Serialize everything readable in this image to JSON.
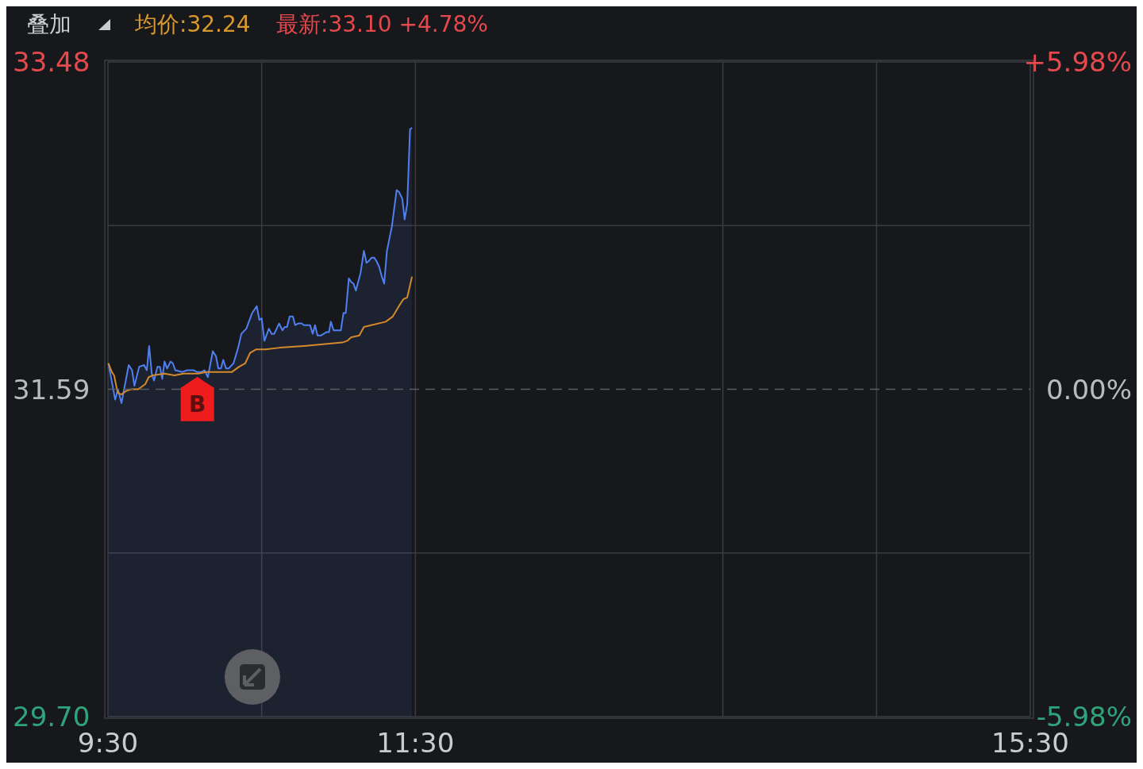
{
  "chart_data": {
    "type": "area",
    "annotations": [
      "叠加",
      "均价:32.24",
      "最新:33.10 +4.78%",
      {
        "text": "B",
        "x": 10.082,
        "y": 31.68
      }
    ],
    "xlim": [
      9.5,
      15.5
    ],
    "xticks": [
      {
        "value": 9.5,
        "label": "9:30"
      },
      {
        "value": 10.5,
        "label": null
      },
      {
        "value": 11.5,
        "label": "11:30"
      },
      {
        "value": 13.5,
        "label": null
      },
      {
        "value": 14.5,
        "label": null
      },
      {
        "value": 15.5,
        "label": "15:30"
      }
    ],
    "ylim": [
      29.7,
      33.48
    ],
    "yticks": [
      {
        "value": 29.7,
        "label": "29.70"
      },
      {
        "value": 30.645,
        "label": null
      },
      31.59,
      {
        "value": 32.535,
        "label": null
      },
      33.48
    ],
    "y2lim": [
      -5.98,
      5.98
    ],
    "y2ticks": [
      {
        "value": -5.98,
        "label": "-5.98%"
      },
      {
        "value": 0,
        "label": "0.00%"
      },
      {
        "value": 5.98,
        "label": "+5.98%"
      }
    ],
    "grid": true,
    "ref_lines": [
      {
        "axis": "y",
        "value": 31.59,
        "line_style": "dashed",
        "color": "#5a5c63"
      }
    ],
    "series": [
      {
        "type": "area",
        "color": "#4f7ff0",
        "x": [
          9.503,
          9.547,
          9.565,
          9.588,
          9.635,
          9.657,
          9.672,
          9.703,
          9.735,
          9.753,
          9.768,
          9.785,
          9.8,
          9.822,
          9.838,
          9.853,
          9.868,
          9.885,
          9.907,
          9.922,
          9.938,
          9.985,
          10.015,
          10.057,
          10.078,
          10.11,
          10.128,
          10.15,
          10.182,
          10.203,
          10.218,
          10.235,
          10.25,
          10.268,
          10.285,
          10.317,
          10.347,
          10.368,
          10.4,
          10.438,
          10.468,
          10.485,
          10.5,
          10.518,
          10.547,
          10.565,
          10.582,
          10.613,
          10.635,
          10.65,
          10.665,
          10.682,
          10.703,
          10.718,
          10.738,
          10.76,
          10.775,
          10.815,
          10.832,
          10.847,
          10.863,
          10.885,
          10.922,
          10.938,
          10.95,
          10.968,
          11.015,
          11.032,
          11.047,
          11.067,
          11.082,
          11.097,
          11.113,
          11.143,
          11.165,
          11.182,
          11.197,
          11.215,
          11.232,
          11.247,
          11.263,
          11.282,
          11.297,
          11.315,
          11.347,
          11.378,
          11.393,
          11.415,
          11.43,
          11.447,
          11.465,
          11.478
        ],
        "values": [
          31.74,
          31.53,
          31.59,
          31.51,
          31.73,
          31.7,
          31.61,
          31.72,
          31.73,
          31.7,
          31.84,
          31.68,
          31.64,
          31.72,
          31.72,
          31.65,
          31.75,
          31.71,
          31.75,
          31.74,
          31.7,
          31.69,
          31.7,
          31.7,
          31.69,
          31.69,
          31.7,
          31.66,
          31.81,
          31.78,
          31.71,
          31.71,
          31.76,
          31.71,
          31.71,
          31.74,
          31.83,
          31.91,
          31.94,
          32.03,
          32.07,
          31.99,
          32.0,
          31.87,
          31.94,
          31.91,
          31.91,
          31.97,
          31.93,
          31.95,
          31.95,
          32.01,
          32.01,
          31.96,
          31.97,
          31.97,
          31.96,
          31.96,
          31.91,
          31.96,
          31.9,
          31.9,
          31.92,
          31.92,
          31.98,
          31.93,
          31.93,
          32.03,
          32.03,
          32.23,
          32.21,
          32.2,
          32.16,
          32.26,
          32.39,
          32.32,
          32.33,
          32.35,
          32.35,
          32.33,
          32.3,
          32.24,
          32.2,
          32.39,
          32.53,
          32.74,
          32.73,
          32.69,
          32.57,
          32.66,
          33.09,
          33.1
        ]
      },
      {
        "type": "line",
        "color": "#d4892a",
        "x": [
          9.503,
          9.525,
          9.54,
          9.563,
          9.588,
          9.618,
          9.65,
          9.697,
          9.743,
          9.765,
          9.79,
          9.868,
          9.932,
          9.993,
          10.088,
          10.135,
          10.182,
          10.307,
          10.353,
          10.393,
          10.425,
          10.463,
          10.525,
          10.618,
          10.775,
          10.9,
          11.025,
          11.057,
          11.082,
          11.135,
          11.165,
          11.213,
          11.307,
          11.353,
          11.4,
          11.422,
          11.447,
          11.478
        ],
        "values": [
          31.74,
          31.69,
          31.67,
          31.57,
          31.56,
          31.58,
          31.59,
          31.59,
          31.62,
          31.66,
          31.67,
          31.68,
          31.67,
          31.68,
          31.68,
          31.69,
          31.69,
          31.69,
          31.72,
          31.74,
          31.8,
          31.82,
          31.82,
          31.83,
          31.84,
          31.85,
          31.86,
          31.87,
          31.89,
          31.9,
          31.95,
          31.96,
          31.98,
          32.01,
          32.08,
          32.11,
          32.12,
          32.24
        ]
      }
    ]
  }
}
